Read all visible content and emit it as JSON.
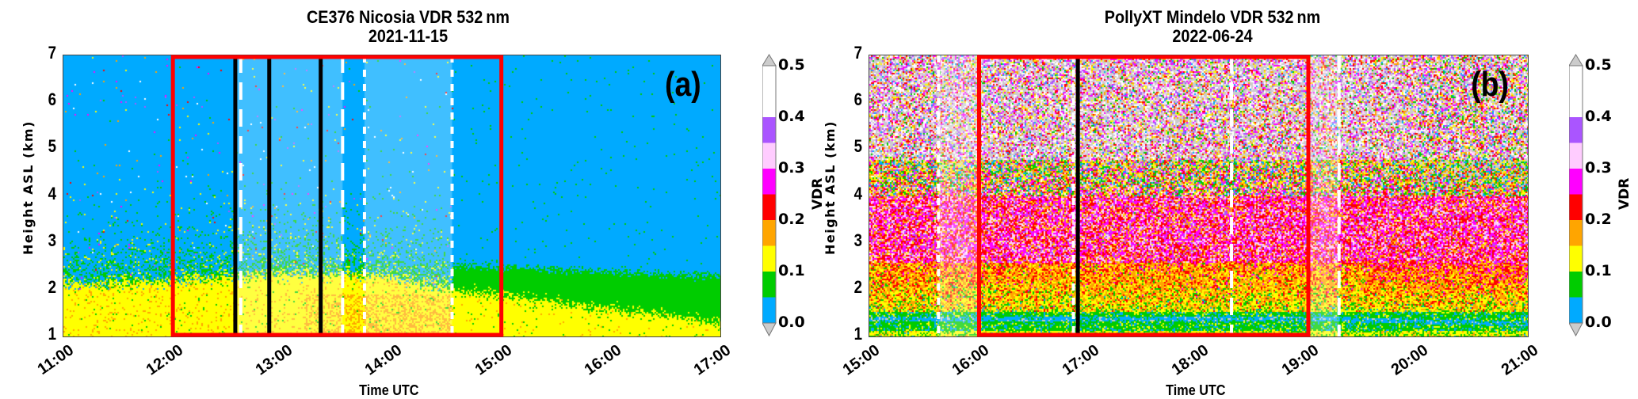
{
  "colorbar": {
    "label": "VDR",
    "ticks": [
      "0.0",
      "0.1",
      "0.2",
      "0.3",
      "0.4",
      "0.5"
    ],
    "bounds": [
      0,
      0.05,
      0.1,
      0.15,
      0.2,
      0.25,
      0.3,
      0.35,
      0.4,
      0.5
    ],
    "colors": [
      "#00aaff",
      "#00cc00",
      "#ffff00",
      "#ffa500",
      "#ff0000",
      "#ff00ff",
      "#ffccff",
      "#aa55ff",
      "#ffffff"
    ],
    "extend_color": "#cccccc"
  },
  "chart_data": [
    {
      "type": "heatmap",
      "panel_letter": "(a)",
      "title": "CE376 Nicosia VDR 532 nm",
      "subtitle": "2021-11-15",
      "xlabel": "Time UTC",
      "ylabel": "Height ASL (km)",
      "xlim_hours": [
        11,
        17
      ],
      "ylim_km": [
        1,
        7
      ],
      "xticks": [
        "11:00",
        "12:00",
        "13:00",
        "14:00",
        "15:00",
        "16:00",
        "17:00"
      ],
      "yticks": [
        "1",
        "2",
        "3",
        "4",
        "5",
        "6",
        "7"
      ],
      "color_variable": "VDR",
      "layers": {
        "dust_layer_top_km": [
          [
            11,
            2.1
          ],
          [
            12,
            2.2
          ],
          [
            13,
            2.35
          ],
          [
            14,
            2.3
          ],
          [
            14.55,
            2.0
          ],
          [
            15,
            1.9
          ],
          [
            16,
            1.6
          ],
          [
            17,
            1.3
          ]
        ],
        "dust_layer_vdr": 0.12,
        "upper_layer_top_km": [
          [
            14.55,
            2.55
          ],
          [
            15.5,
            2.45
          ],
          [
            16.5,
            2.35
          ],
          [
            17,
            2.3
          ]
        ],
        "upper_layer_vdr": 0.07,
        "free_troposphere_vdr": 0.02
      },
      "shaded_intervals_hours": [
        [
          12.57,
          13.55
        ],
        [
          13.75,
          14.55
        ]
      ],
      "red_box_hours": [
        12,
        15
      ],
      "solid_black_lines_hours": [
        12.57,
        12.88,
        13.35
      ],
      "dashed_white_lines_hours": [
        12.62,
        13.55
      ],
      "dotted_white_lines_hours": [
        13.75,
        14.55
      ]
    },
    {
      "type": "heatmap",
      "panel_letter": "(b)",
      "title": "PollyXT Mindelo VDR 532 nm",
      "subtitle": "2022-06-24",
      "xlabel": "Time UTC",
      "ylabel": "Height ASL (km)",
      "xlim_hours": [
        15,
        21
      ],
      "ylim_km": [
        1,
        7
      ],
      "xticks": [
        "15:00",
        "16:00",
        "17:00",
        "18:00",
        "19:00",
        "20:00",
        "21:00"
      ],
      "yticks": [
        "1",
        "2",
        "3",
        "4",
        "5",
        "6",
        "7"
      ],
      "color_variable": "VDR",
      "layers": {
        "marine_layer_km": [
          1.15,
          1.55
        ],
        "marine_layer_vdr": 0.06,
        "lower_dust_km": [
          1.55,
          2.6
        ],
        "lower_dust_vdr": [
          0.13,
          0.19
        ],
        "upper_dust_km": [
          2.6,
          4.0
        ],
        "upper_dust_vdr": 0.26,
        "dust_top_km": [
          4.0,
          4.8
        ],
        "noise_above_km": 4.8
      },
      "shaded_intervals_hours": [
        [
          15.63,
          16.0
        ],
        [
          19.0,
          19.28
        ]
      ],
      "red_box_hours": [
        16,
        19
      ],
      "solid_black_lines_hours": [
        16.9
      ],
      "dashed_white_lines_hours": [
        18.3,
        19.28
      ],
      "dotted_white_lines_hours": [
        15.63,
        16.86
      ]
    }
  ]
}
